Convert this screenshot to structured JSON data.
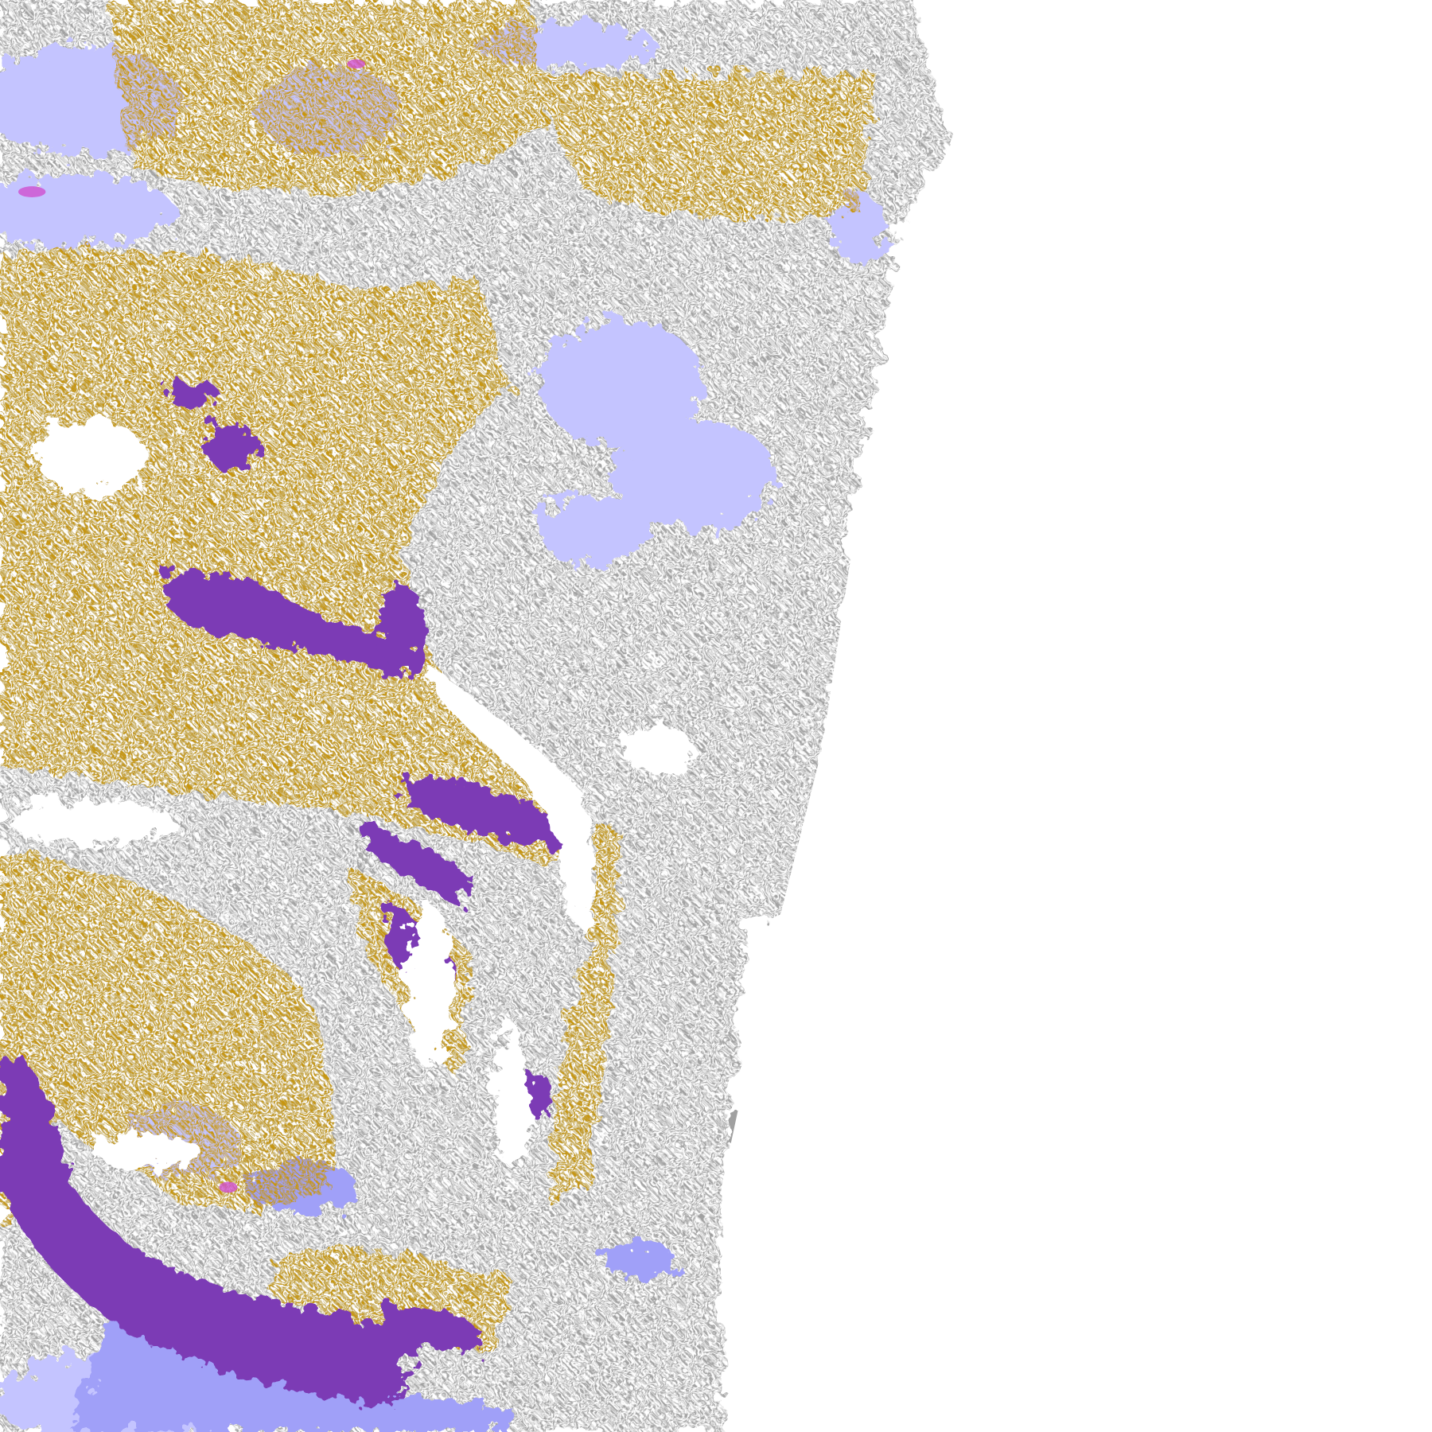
{
  "image": {
    "kind": "satellite cloud classification imagery",
    "background_color": "#ffffff",
    "class_colors": {
      "gold": "#c8960a",
      "purple": "#7b3bb5",
      "gray": "#a0a0a0",
      "dark_gray": "#8c8c8c",
      "lavender": "#c4c4ff",
      "periwinkle": "#a0a0f8",
      "magenta": "#d050d0"
    }
  }
}
